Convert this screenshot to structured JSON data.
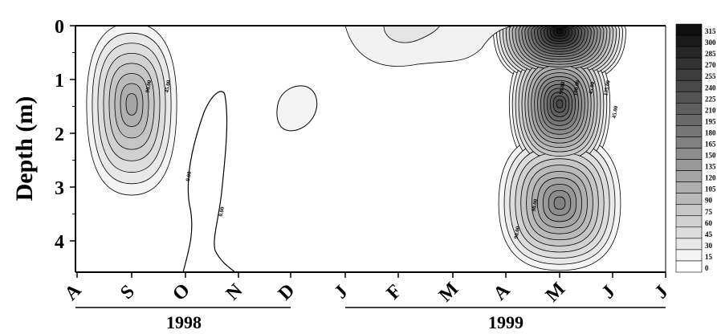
{
  "chart_data": {
    "type": "heatmap",
    "title": "",
    "ylabel": "Depth (m)",
    "xlabel": "",
    "ylim": [
      0,
      4.3
    ],
    "y_ticks": [
      "0",
      "1",
      "2",
      "3",
      "4"
    ],
    "x_ticks": [
      "A",
      "S",
      "O",
      "N",
      "D",
      "J",
      "F",
      "M",
      "A",
      "M",
      "J",
      "J"
    ],
    "year_labels": [
      "1998",
      "1999"
    ],
    "colorbar_levels": [
      "315",
      "300",
      "285",
      "270",
      "255",
      "240",
      "225",
      "210",
      "195",
      "180",
      "165",
      "150",
      "135",
      "120",
      "105",
      "90",
      "75",
      "60",
      "45",
      "30",
      "15",
      "0"
    ],
    "contour_labels": [
      "90.00",
      "45.00",
      "0.00",
      "0.00",
      "45.00",
      "90.00",
      "90.00",
      "135.00",
      "180.00",
      "45.00",
      "90.00"
    ],
    "colorscale": "grayscale",
    "peaks": [
      {
        "month_index": 1,
        "depth": 1.45,
        "value": 130
      },
      {
        "month_index": 9,
        "depth": 0.1,
        "value": 315
      },
      {
        "month_index": 9,
        "depth": 1.45,
        "value": 240
      },
      {
        "month_index": 9,
        "depth": 3.3,
        "value": 165
      }
    ]
  }
}
